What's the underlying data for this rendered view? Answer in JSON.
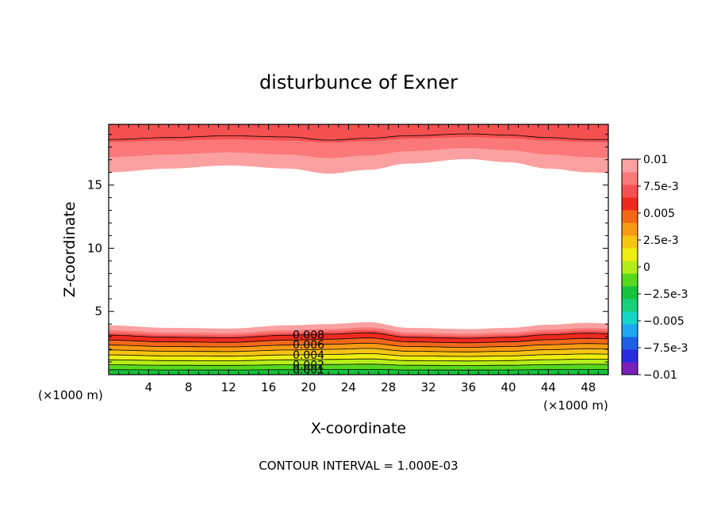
{
  "chart_data": {
    "type": "heatmap",
    "title": "disturbunce of Exner",
    "xlabel": "X-coordinate",
    "ylabel": "Z-coordinate",
    "x_unit_label": "(×1000 m)",
    "y_unit_label": "(×1000 m)",
    "footer": "CONTOUR INTERVAL = 1.000E-03",
    "xlim": [
      0,
      50
    ],
    "ylim": [
      0,
      19.8
    ],
    "x_ticks": [
      4,
      8,
      12,
      16,
      20,
      24,
      28,
      32,
      36,
      40,
      44,
      48
    ],
    "y_ticks": [
      5,
      10,
      15
    ],
    "colorbar": {
      "labels": [
        "0.01",
        "7.5e-3",
        "0.005",
        "2.5e-3",
        "0",
        "−2.5e-3",
        "−0.005",
        "−7.5e-3",
        "−0.01"
      ],
      "range": [
        -0.01,
        0.01
      ],
      "colors": [
        "#7a1fb8",
        "#2a2adf",
        "#1e5fe6",
        "#1fa8ef",
        "#16d6c8",
        "#18d07a",
        "#16c43a",
        "#56d81f",
        "#b5ee19",
        "#eeee10",
        "#f6c412",
        "#f79a13",
        "#f4681a",
        "#ee2a1f",
        "#f55050",
        "#fa7878",
        "#fba0a0"
      ]
    },
    "contour_labels": [
      "0.008",
      "0.006",
      "0.004",
      "0.002",
      "0.001"
    ],
    "contour_interval": 0.001,
    "lower_band": {
      "x": [
        0,
        6,
        12,
        18,
        22,
        26,
        30,
        36,
        40,
        44,
        48,
        50
      ],
      "top_z": [
        3.9,
        3.7,
        3.65,
        3.9,
        4.0,
        4.15,
        3.7,
        3.6,
        3.7,
        3.95,
        4.1,
        4.05
      ],
      "levels": [
        {
          "value": 0.01,
          "color": "#fba0a0"
        },
        {
          "value": 0.009,
          "color": "#fa7878"
        },
        {
          "value": 0.0085,
          "color": "#f55050"
        },
        {
          "value": 0.008,
          "color": "#ee2a1f"
        },
        {
          "value": 0.007,
          "color": "#f4681a"
        },
        {
          "value": 0.006,
          "color": "#f79a13"
        },
        {
          "value": 0.005,
          "color": "#f6c412"
        },
        {
          "value": 0.004,
          "color": "#eeee10"
        },
        {
          "value": 0.003,
          "color": "#b5ee19"
        },
        {
          "value": 0.002,
          "color": "#56d81f"
        },
        {
          "value": 0.001,
          "color": "#16c43a"
        }
      ]
    },
    "upper_band": {
      "x": [
        0,
        6,
        12,
        18,
        22,
        26,
        30,
        36,
        40,
        44,
        48,
        50
      ],
      "bottom_z": [
        16.0,
        16.3,
        16.55,
        16.3,
        15.9,
        16.2,
        16.7,
        17.05,
        16.8,
        16.3,
        16.0,
        15.95
      ],
      "top_line_z": [
        18.6,
        18.75,
        18.9,
        18.8,
        18.55,
        18.7,
        18.9,
        19.05,
        18.95,
        18.75,
        18.6,
        18.6
      ],
      "colors": [
        "#fba0a0",
        "#fa7878",
        "#f55050"
      ]
    }
  }
}
